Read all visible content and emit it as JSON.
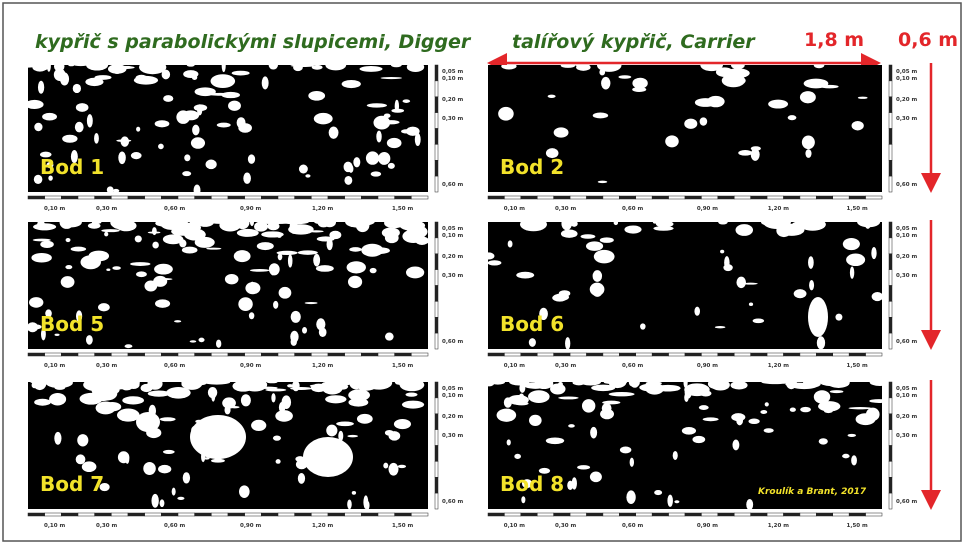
{
  "titles": {
    "left": "kypřič s parabolickými slupicemi, Digger",
    "right": "talířový kypřič, Carrier"
  },
  "annotations": {
    "width": "1,8 m",
    "depth": "0,6 m",
    "credit": "Kroulík a Brant, 2017"
  },
  "panels": [
    {
      "label": "Bod 1"
    },
    {
      "label": "Bod 2"
    },
    {
      "label": "Bod 5"
    },
    {
      "label": "Bod 6"
    },
    {
      "label": "Bod 7"
    },
    {
      "label": "Bod 8"
    }
  ],
  "depth_scale": [
    "0,05 m",
    "0,10 m",
    "0,20 m",
    "0,30 m",
    "0,60 m"
  ],
  "width_scale": [
    "0,10 m",
    "0,30 m",
    "0,60 m",
    "0,90 m",
    "1,20 m",
    "1,50 m"
  ]
}
